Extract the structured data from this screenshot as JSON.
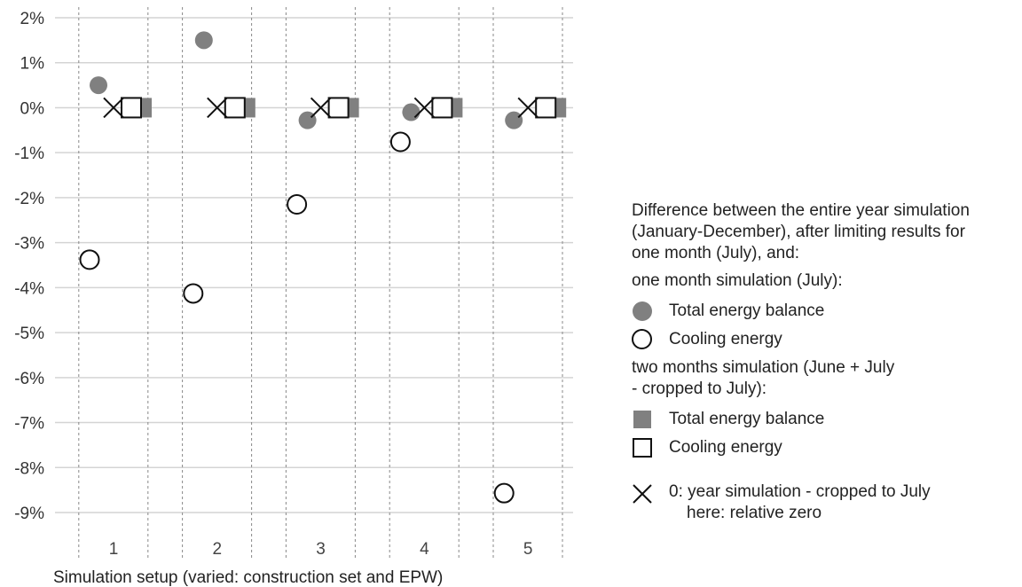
{
  "chart_data": {
    "type": "scatter",
    "title": "",
    "xlabel": "Simulation setup (varied: construction set and EPW)",
    "ylabel": "",
    "categories": [
      "1",
      "2",
      "3",
      "4",
      "5"
    ],
    "ylim": [
      -9,
      2
    ],
    "yticks": [
      2,
      1,
      0,
      -1,
      -2,
      -3,
      -4,
      -5,
      -6,
      -7,
      -8,
      -9
    ],
    "ytick_labels": [
      "2%",
      "1%",
      "0%",
      "-1%",
      "-2%",
      "-3%",
      "-4%",
      "-5%",
      "-6%",
      "-7%",
      "-8%",
      "-9%"
    ],
    "grid": "horizontal solid, vertical dashed",
    "legend_position": "right",
    "series": [
      {
        "name": "Total energy balance",
        "group": "one month simulation (July)",
        "marker": "filled-circle",
        "color": "#808080",
        "values": [
          0.5,
          1.5,
          -0.28,
          -0.1,
          -0.28
        ]
      },
      {
        "name": "Cooling energy",
        "group": "one month simulation (July)",
        "marker": "open-circle",
        "color": "#111111",
        "values": [
          -3.38,
          -4.13,
          -2.15,
          -0.76,
          -8.57
        ]
      },
      {
        "name": "Total energy balance",
        "group": "two months simulation (June + July - cropped to July)",
        "marker": "filled-square",
        "color": "#808080",
        "values": [
          0,
          0,
          0,
          0,
          0
        ]
      },
      {
        "name": "Cooling energy",
        "group": "two months simulation (June + July - cropped to July)",
        "marker": "open-square",
        "color": "#111111",
        "values": [
          0,
          0,
          0,
          0,
          0
        ]
      },
      {
        "name": "0: year simulation - cropped to July",
        "marker": "x",
        "color": "#111111",
        "values": [
          0,
          0,
          0,
          0,
          0
        ]
      }
    ]
  },
  "legend": {
    "intro_1": "Difference between the entire year simulation",
    "intro_2": "(January-December), after limiting results for",
    "intro_3": "one month (July), and:",
    "group1_title": "one month simulation (July):",
    "group1_item1": "Total energy balance",
    "group1_item2": "Cooling energy",
    "group2_title_1": "two months simulation (June + July",
    "group2_title_2": "- cropped to July):",
    "group2_item1": "Total energy balance",
    "group2_item2": "Cooling energy",
    "zero_line1": "0: year simulation - cropped to July",
    "zero_line2": "here: relative zero"
  }
}
